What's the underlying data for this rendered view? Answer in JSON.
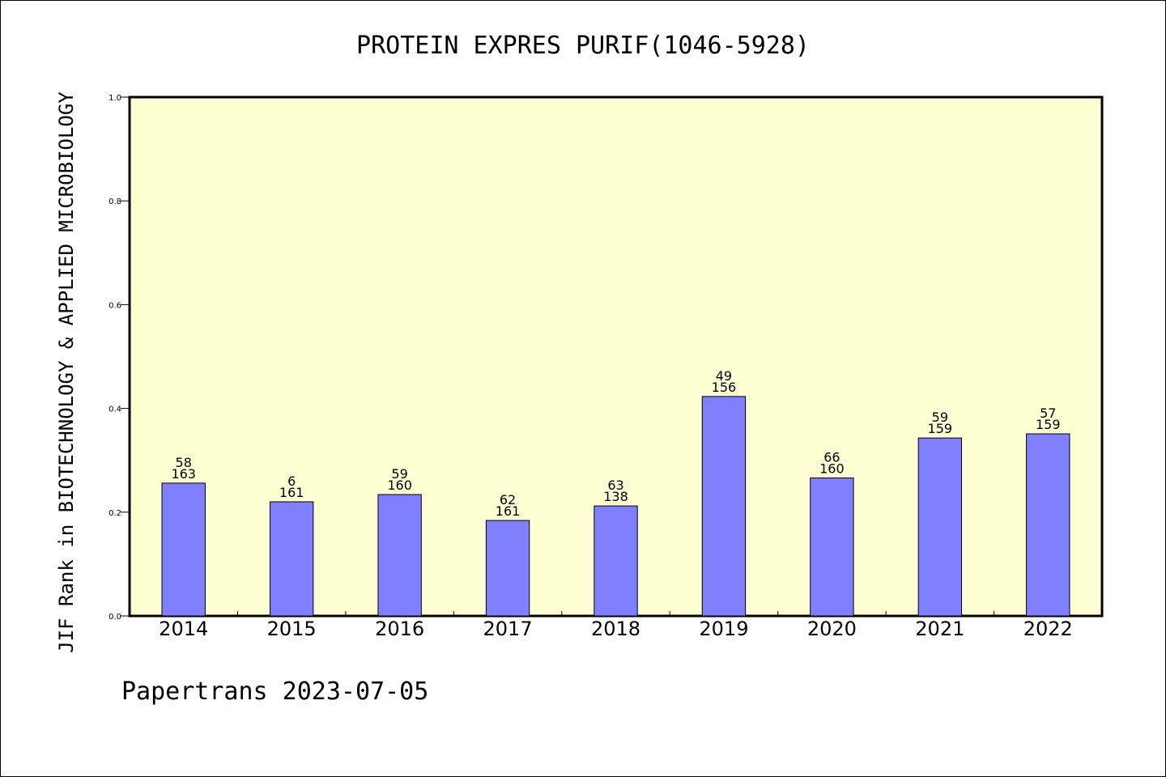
{
  "chart_data": {
    "type": "bar",
    "title": "PROTEIN EXPRES PURIF(1046-5928)",
    "ylabel": "JIF Rank in BIOTECHNOLOGY & APPLIED MICROBIOLOGY",
    "xlabel": "",
    "ylim": [
      0,
      1.0
    ],
    "yticks": [
      0.0,
      0.2,
      0.4,
      0.6,
      0.8,
      1.0
    ],
    "ytick_labels": [
      "0.0",
      "0.2",
      "0.4",
      "0.6",
      "0.8",
      "1.0"
    ],
    "categories": [
      "2014",
      "2015",
      "2016",
      "2017",
      "2018",
      "2019",
      "2020",
      "2021",
      "2022"
    ],
    "values": [
      0.256,
      0.22,
      0.234,
      0.184,
      0.212,
      0.423,
      0.266,
      0.343,
      0.351
    ],
    "rank_labels": [
      "58",
      "6",
      "59",
      "62",
      "63",
      "49",
      "66",
      "59",
      "57"
    ],
    "total_labels": [
      "163",
      "161",
      "160",
      "161",
      "138",
      "156",
      "160",
      "159",
      "159"
    ],
    "grid": false,
    "colors": {
      "bar_fill": "#8080ff",
      "bar_stroke": "#000000",
      "plot_background": "#ffffd4"
    }
  },
  "footer": {
    "text": "Papertrans 2023-07-05"
  }
}
